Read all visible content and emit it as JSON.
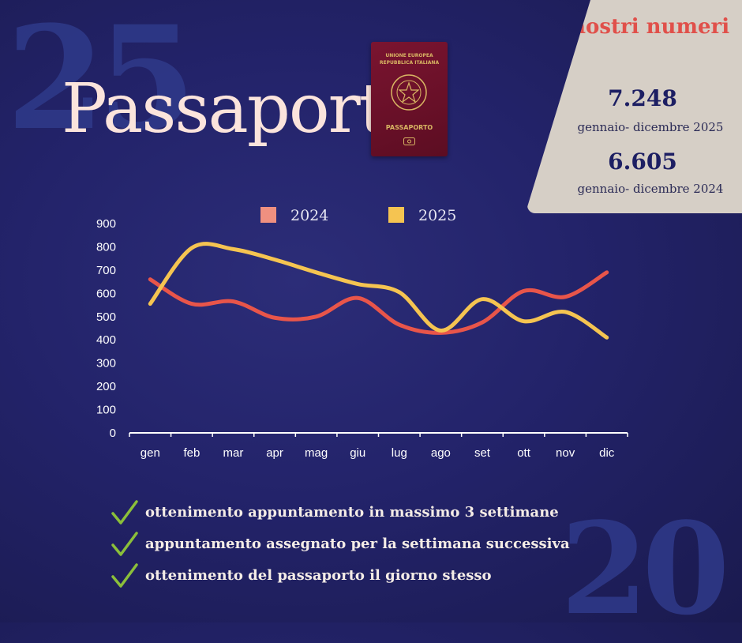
{
  "background_numbers": {
    "top_left": "25",
    "bottom_right": "20"
  },
  "title": "Passaporti",
  "passport_cover": {
    "line1": "UNIONE EUROPEA",
    "line2": "REPUBBLICA ITALIANA",
    "label": "PASSAPORTO"
  },
  "stats_panel": {
    "title": "I nostri numeri",
    "stats": [
      {
        "value": "7.248",
        "label": "gennaio- dicembre 2025"
      },
      {
        "value": "6.605",
        "label": "gennaio- dicembre 2024"
      }
    ]
  },
  "colors": {
    "series_2024": "#e8554a",
    "series_2025": "#f5c451",
    "swatch_2024": "#ef9080",
    "axis": "#ffffff",
    "check": "#8bbf3a"
  },
  "chart_data": {
    "type": "line",
    "categories": [
      "gen",
      "feb",
      "mar",
      "apr",
      "mag",
      "giu",
      "lug",
      "ago",
      "set",
      "ott",
      "nov",
      "dic"
    ],
    "series": [
      {
        "name": "2024",
        "values": [
          660,
          555,
          565,
          495,
          500,
          580,
          465,
          430,
          475,
          610,
          585,
          690
        ]
      },
      {
        "name": "2025",
        "values": [
          555,
          795,
          790,
          745,
          690,
          640,
          605,
          440,
          575,
          480,
          520,
          410
        ]
      }
    ],
    "y_ticks": [
      "0",
      "100",
      "200",
      "300",
      "400",
      "500",
      "600",
      "700",
      "800",
      "900"
    ],
    "ylim": [
      0,
      900
    ],
    "grid": false,
    "legend": "top"
  },
  "bullets": [
    "ottenimento appuntamento in  massimo 3 settimane",
    "appuntamento assegnato per la settimana successiva",
    "ottenimento del passaporto il giorno stesso"
  ]
}
